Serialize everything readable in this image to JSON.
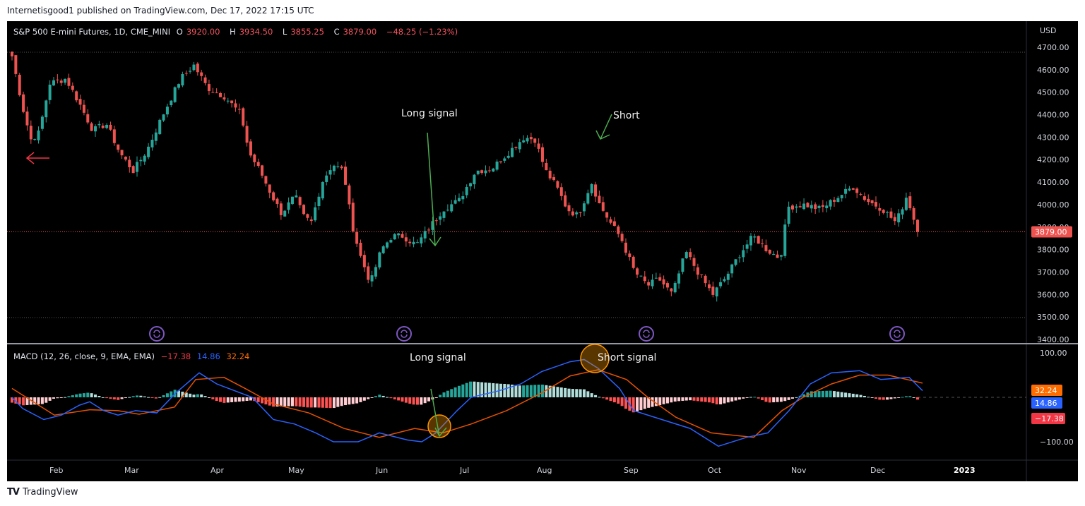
{
  "publish_line": "Internetisgood1 published on TradingView.com, Dec 17, 2022 17:15 UTC",
  "header": {
    "symbol": "S&P 500 E-mini Futures, 1D, CME_MINI",
    "open_label": "O",
    "open": "3920.00",
    "high_label": "H",
    "high": "3934.50",
    "low_label": "L",
    "low": "3855.25",
    "close_label": "C",
    "close": "3879.00",
    "change": "−48.25 (−1.23%)"
  },
  "price_axis": {
    "currency": "USD",
    "ticks": [
      "4700.00",
      "4600.00",
      "4500.00",
      "4400.00",
      "4300.00",
      "4200.00",
      "4100.00",
      "4000.00",
      "3900.00",
      "3800.00",
      "3700.00",
      "3600.00",
      "3500.00",
      "3400.00"
    ],
    "last_price": "3879.00"
  },
  "macd": {
    "label": "MACD (12, 26, close, 9, EMA, EMA)",
    "histogram": "−17.38",
    "macd_line": "14.86",
    "signal_line": "32.24",
    "axis_ticks": [
      "100.00",
      "0.00",
      "−100.00"
    ]
  },
  "time_axis": [
    "Feb",
    "Mar",
    "Apr",
    "May",
    "Jun",
    "Jul",
    "Aug",
    "Sep",
    "Oct",
    "Nov",
    "Dec",
    "2023"
  ],
  "annotations": {
    "price_long": "Long signal",
    "price_short": "Short",
    "macd_long": "Long signal",
    "macd_short": "Short signal"
  },
  "footer": {
    "logo": "TV",
    "brand": "TradingView"
  },
  "colors": {
    "up": "#26a69a",
    "down": "#ef5350",
    "macd": "#2962ff",
    "signal": "#ff6d00",
    "hist_up_strong": "#26a69a",
    "hist_up_weak": "#b2dfdb",
    "hist_down_strong": "#ff5252",
    "hist_down_weak": "#ffcdd2",
    "annotation_arrow": "#4caf50",
    "dividend_icon": "#7e57c2"
  },
  "chart_data": {
    "type": "candlestick",
    "title": "S&P 500 E-mini Futures, 1D, CME_MINI",
    "ylabel": "USD",
    "ylim": [
      3400,
      4700
    ],
    "x_ticks": [
      "Feb",
      "Mar",
      "Apr",
      "May",
      "Jun",
      "Jul",
      "Aug",
      "Sep",
      "Oct",
      "Nov",
      "Dec",
      "2023"
    ],
    "monthly_approx_close": {
      "Jan": 4500,
      "Feb": 4370,
      "Mar": 4530,
      "Apr": 4130,
      "May": 4130,
      "Jun": 3780,
      "Jul": 4130,
      "Aug": 3950,
      "Sep": 3590,
      "Oct": 3870,
      "Nov": 4080,
      "Dec": 3879
    },
    "key_points": [
      {
        "label": "Jan high",
        "value": 4660
      },
      {
        "label": "Mar/Apr high",
        "value": 4630
      },
      {
        "label": "Jun low",
        "value": 3640
      },
      {
        "label": "Aug high (Short)",
        "value": 4320
      },
      {
        "label": "Oct low",
        "value": 3500
      },
      {
        "label": "Dec close",
        "value": 3879
      }
    ],
    "last": {
      "open": 3920.0,
      "high": 3934.5,
      "low": 3855.25,
      "close": 3879.0,
      "change": -48.25,
      "change_pct": -1.23
    },
    "macd": {
      "params": "12, 26, close, 9, EMA, EMA",
      "histogram": -17.38,
      "macd": 14.86,
      "signal": 32.24,
      "ylim": [
        -120,
        120
      ]
    },
    "grid": false
  }
}
